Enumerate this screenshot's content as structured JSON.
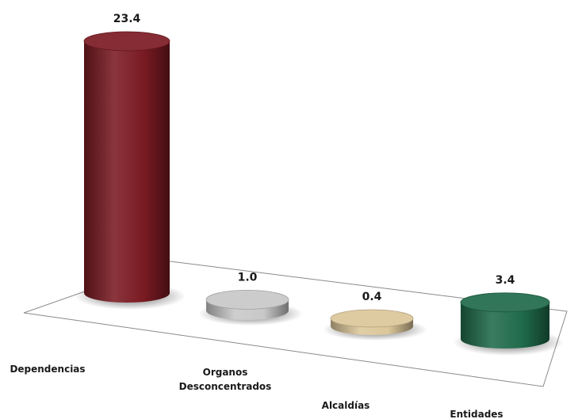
{
  "chart_data": {
    "type": "bar",
    "categories": [
      "Dependencias",
      "Organos Desconcentrados",
      "Alcaldías",
      "Entidades"
    ],
    "category_lines": [
      [
        "Dependencias"
      ],
      [
        "Organos",
        "Desconcentrados"
      ],
      [
        "Alcaldías"
      ],
      [
        "Entidades"
      ]
    ],
    "values": [
      23.4,
      1.0,
      0.4,
      3.4
    ],
    "value_labels": [
      "23.4",
      "1.0",
      "0.4",
      "3.4"
    ],
    "colors": [
      "#7a1a22",
      "#c8c8c8",
      "#dcc79a",
      "#1f6a4a"
    ],
    "style": "3d-cylinder",
    "grid": false,
    "legend": "none",
    "title": "",
    "xlabel": "",
    "ylabel": ""
  }
}
